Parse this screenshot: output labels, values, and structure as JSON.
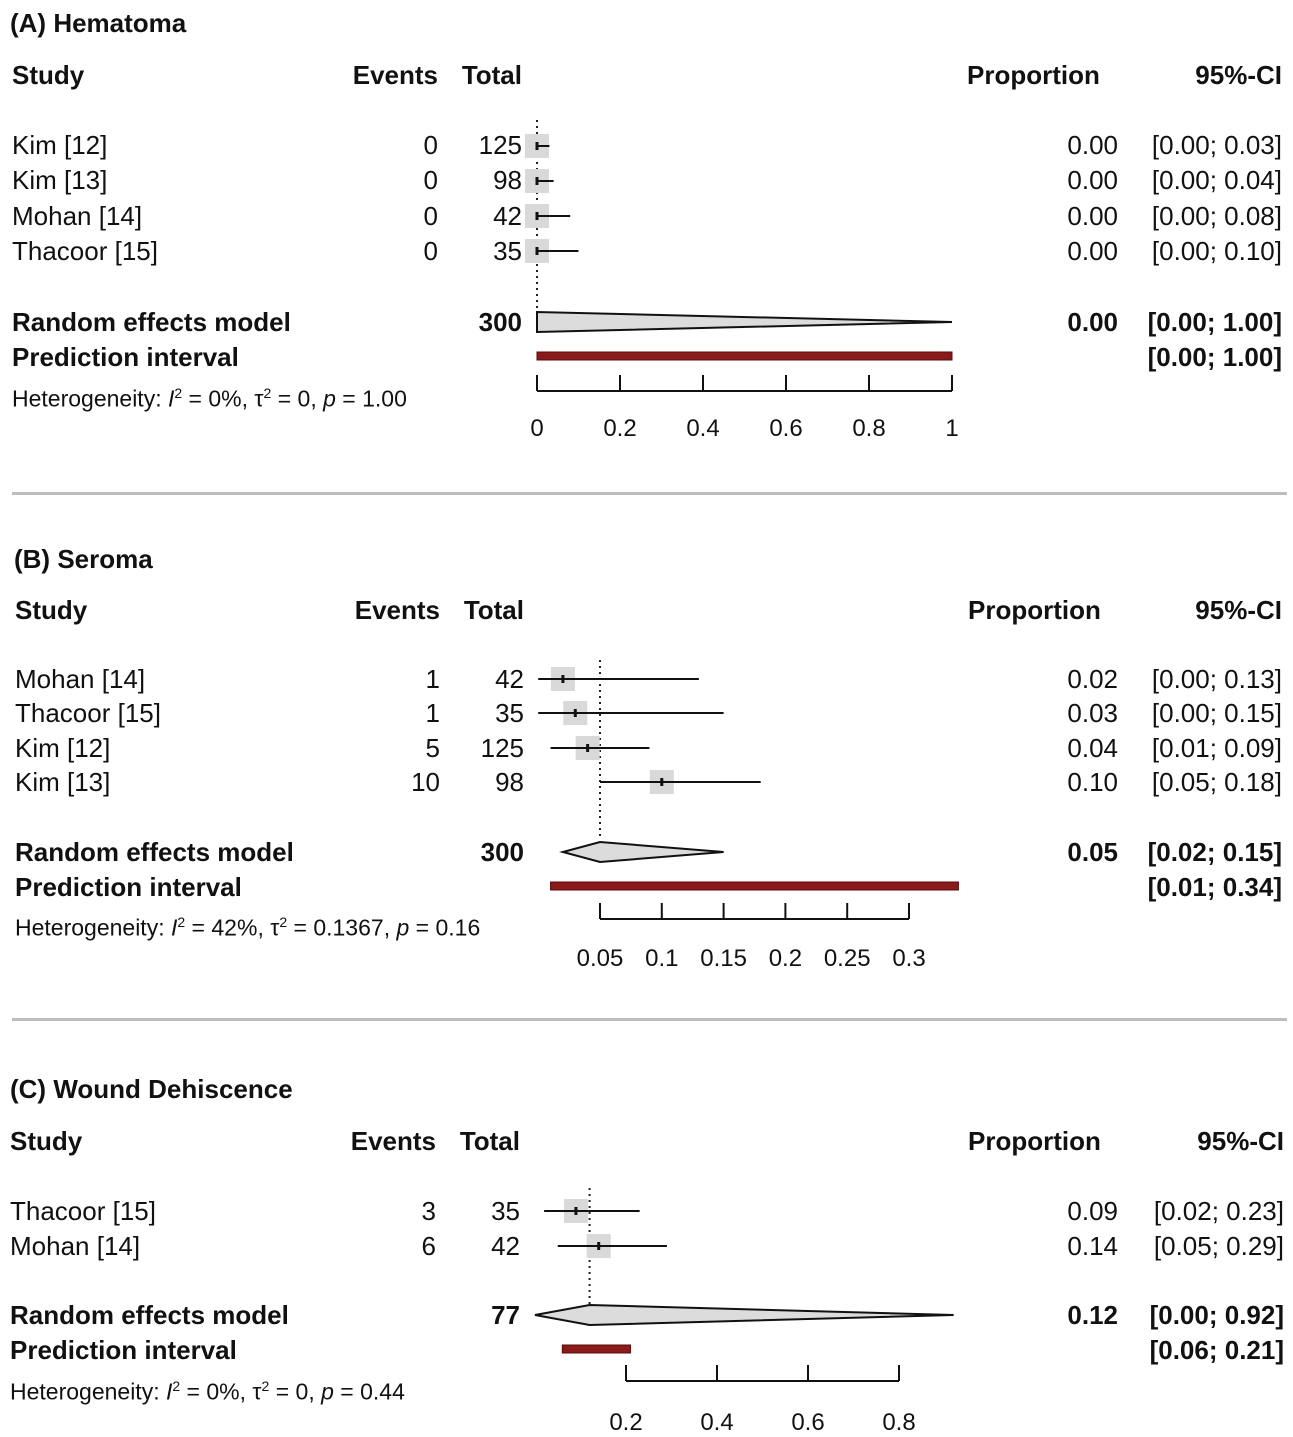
{
  "headers": {
    "study": "Study",
    "events": "Events",
    "total": "Total",
    "proportion": "Proportion",
    "ci": "95%-CI"
  },
  "panels": [
    {
      "title": "(A) Hematoma",
      "random_label": "Random effects model",
      "random_total": "300",
      "random_prop": "0.00",
      "random_ci": "[0.00; 1.00]",
      "pred_label": "Prediction interval",
      "pred_ci": "[0.00; 1.00]",
      "het": {
        "prefix": "Heterogeneity: ",
        "I2": "0%",
        "tau2": "0",
        "p": "1.00"
      },
      "studies": [
        {
          "name": "Kim  [12]",
          "events": "0",
          "total": "125",
          "prop": "0.00",
          "ci": "[0.00; 0.03]"
        },
        {
          "name": "Kim  [13]",
          "events": "0",
          "total": "98",
          "prop": "0.00",
          "ci": "[0.00; 0.04]"
        },
        {
          "name": "Mohan  [14]",
          "events": "0",
          "total": "42",
          "prop": "0.00",
          "ci": "[0.00; 0.08]"
        },
        {
          "name": "Thacoor  [15]",
          "events": "0",
          "total": "35",
          "prop": "0.00",
          "ci": "[0.00; 0.10]"
        }
      ]
    },
    {
      "title": "(B) Seroma",
      "random_label": "Random effects model",
      "random_total": "300",
      "random_prop": "0.05",
      "random_ci": "[0.02; 0.15]",
      "pred_label": "Prediction interval",
      "pred_ci": "[0.01; 0.34]",
      "het": {
        "prefix": "Heterogeneity: ",
        "I2": "42%",
        "tau2": "0.1367",
        "p": "0.16"
      },
      "studies": [
        {
          "name": "Mohan  [14]",
          "events": "1",
          "total": "42",
          "prop": "0.02",
          "ci": "[0.00; 0.13]"
        },
        {
          "name": "Thacoor  [15]",
          "events": "1",
          "total": "35",
          "prop": "0.03",
          "ci": "[0.00; 0.15]"
        },
        {
          "name": "Kim  [12]",
          "events": "5",
          "total": "125",
          "prop": "0.04",
          "ci": "[0.01; 0.09]"
        },
        {
          "name": "Kim  [13]",
          "events": "10",
          "total": "98",
          "prop": "0.10",
          "ci": "[0.05; 0.18]"
        }
      ]
    },
    {
      "title": "(C) Wound Dehiscence",
      "random_label": "Random effects model",
      "random_total": "77",
      "random_prop": "0.12",
      "random_ci": "[0.00; 0.92]",
      "pred_label": "Prediction interval",
      "pred_ci": "[0.06; 0.21]",
      "het": {
        "prefix": "Heterogeneity: ",
        "I2": "0%",
        "tau2": "0",
        "p": "0.44"
      },
      "studies": [
        {
          "name": "Thacoor  [15]",
          "events": "3",
          "total": "35",
          "prop": "0.09",
          "ci": "[0.02; 0.23]"
        },
        {
          "name": "Mohan  [14]",
          "events": "6",
          "total": "42",
          "prop": "0.14",
          "ci": "[0.05; 0.29]"
        }
      ]
    }
  ],
  "chart_data": [
    {
      "type": "forest",
      "title": "(A) Hematoma",
      "xlim": [
        0,
        1
      ],
      "ticks": [
        0,
        0.2,
        0.4,
        0.6,
        0.8,
        1
      ],
      "tick_labels": [
        "0",
        "0.2",
        "0.4",
        "0.6",
        "0.8",
        "1"
      ],
      "studies": [
        {
          "label": "Kim  [12]",
          "est": 0.0,
          "lo": 0.0,
          "hi": 0.03
        },
        {
          "label": "Kim  [13]",
          "est": 0.0,
          "lo": 0.0,
          "hi": 0.04
        },
        {
          "label": "Mohan  [14]",
          "est": 0.0,
          "lo": 0.0,
          "hi": 0.08
        },
        {
          "label": "Thacoor  [15]",
          "est": 0.0,
          "lo": 0.0,
          "hi": 0.1
        }
      ],
      "random_effects": {
        "est": 0.0,
        "lo": 0.0,
        "hi": 1.0
      },
      "prediction_interval": {
        "lo": 0.0,
        "hi": 1.0
      },
      "reference_line": 0.0
    },
    {
      "type": "forest",
      "title": "(B) Seroma",
      "xlim": [
        0.05,
        0.3
      ],
      "ticks": [
        0.05,
        0.1,
        0.15,
        0.2,
        0.25,
        0.3
      ],
      "tick_labels": [
        "0.05",
        "0.1",
        "0.15",
        "0.2",
        "0.25",
        "0.3"
      ],
      "studies": [
        {
          "label": "Mohan  [14]",
          "est": 0.02,
          "lo": 0.0,
          "hi": 0.13
        },
        {
          "label": "Thacoor  [15]",
          "est": 0.03,
          "lo": 0.0,
          "hi": 0.15
        },
        {
          "label": "Kim  [12]",
          "est": 0.04,
          "lo": 0.01,
          "hi": 0.09
        },
        {
          "label": "Kim  [13]",
          "est": 0.1,
          "lo": 0.05,
          "hi": 0.18
        }
      ],
      "random_effects": {
        "est": 0.05,
        "lo": 0.02,
        "hi": 0.15
      },
      "prediction_interval": {
        "lo": 0.01,
        "hi": 0.34
      },
      "reference_line": 0.05
    },
    {
      "type": "forest",
      "title": "(C) Wound Dehiscence",
      "xlim": [
        0.2,
        0.8
      ],
      "ticks": [
        0.2,
        0.4,
        0.6,
        0.8
      ],
      "tick_labels": [
        "0.2",
        "0.4",
        "0.6",
        "0.8"
      ],
      "studies": [
        {
          "label": "Thacoor  [15]",
          "est": 0.09,
          "lo": 0.02,
          "hi": 0.23
        },
        {
          "label": "Mohan  [14]",
          "est": 0.14,
          "lo": 0.05,
          "hi": 0.29
        }
      ],
      "random_effects": {
        "est": 0.12,
        "lo": 0.0,
        "hi": 0.92
      },
      "prediction_interval": {
        "lo": 0.06,
        "hi": 0.21
      },
      "reference_line": 0.12
    }
  ]
}
